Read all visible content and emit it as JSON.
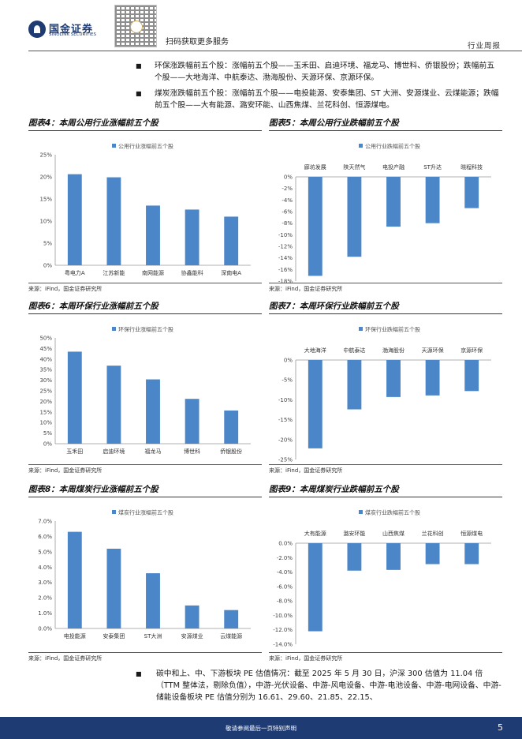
{
  "header": {
    "brand_cn": "国金证券",
    "brand_en": "SINOLINK SECURITIES",
    "qr_caption": "扫码获取更多服务",
    "section": "行业周报"
  },
  "bullets": [
    "环保涨跌幅前五个股：涨幅前五个股——玉禾田、启迪环境、福龙马、博世科、侨银股份；跌幅前五个股——大地海洋、中航泰达、渤海股份、天源环保、京源环保。",
    "煤炭涨跌幅前五个股：涨幅前五个股——电投能源、安泰集团、ST 大洲、安源煤业、云煤能源；跌幅前五个股——大有能源、潞安环能、山西焦煤、兰花科创、恒源煤电。"
  ],
  "figures": [
    {
      "title": "图表4：本周公用行业涨幅前五个股",
      "source": "来源：iFind，国金证券研究所"
    },
    {
      "title": "图表5：本周公用行业跌幅前五个股",
      "source": "来源：iFind，国金证券研究所"
    },
    {
      "title": "图表6：本周环保行业涨幅前五个股",
      "source": "来源：iFind，国金证券研究所"
    },
    {
      "title": "图表7：本周环保行业跌幅前五个股",
      "source": "来源：iFind，国金证券研究所"
    },
    {
      "title": "图表8：本周煤炭行业涨幅前五个股",
      "source": "来源：iFind，国金证券研究所"
    },
    {
      "title": "图表9：本周煤炭行业跌幅前五个股",
      "source": "来源：iFind，国金证券研究所"
    }
  ],
  "chart_data": [
    {
      "type": "bar",
      "title": "图表4：本周公用行业涨幅前五个股",
      "categories": [
        "粤电力A",
        "江苏新能",
        "南网能源",
        "协鑫能科",
        "深南电A"
      ],
      "series": [
        {
          "name": "公用行业涨幅前五个股",
          "values": [
            20.6,
            19.9,
            13.5,
            12.6,
            11.0
          ]
        }
      ],
      "yticks": [
        "0%",
        "5%",
        "10%",
        "15%",
        "20%",
        "25%"
      ],
      "ylim": [
        0,
        25
      ],
      "legend": "top",
      "color": "#4a86c8"
    },
    {
      "type": "bar",
      "title": "图表5：本周公用行业跌幅前五个股",
      "categories": [
        "廊坊发展",
        "陕天然气",
        "电投产融",
        "ST升达",
        "晓程科技"
      ],
      "series": [
        {
          "name": "公用行业跌幅前五个股",
          "values": [
            -17.1,
            -13.8,
            -8.6,
            -8.0,
            -5.4
          ]
        }
      ],
      "yticks": [
        "0%",
        "-2%",
        "-4%",
        "-6%",
        "-8%",
        "-10%",
        "-12%",
        "-14%",
        "-16%",
        "-18%"
      ],
      "ylim": [
        -18,
        0
      ],
      "legend": "top",
      "color": "#4a86c8"
    },
    {
      "type": "bar",
      "title": "图表6：本周环保行业涨幅前五个股",
      "categories": [
        "玉禾田",
        "启迪环境",
        "福龙马",
        "博世科",
        "侨银股份"
      ],
      "series": [
        {
          "name": "环保行业涨幅前五个股",
          "values": [
            43.5,
            36.9,
            30.4,
            21.2,
            15.7
          ]
        }
      ],
      "yticks": [
        "0%",
        "5%",
        "10%",
        "15%",
        "20%",
        "25%",
        "30%",
        "35%",
        "40%",
        "45%",
        "50%"
      ],
      "ylim": [
        0,
        50
      ],
      "legend": "top",
      "color": "#4a86c8"
    },
    {
      "type": "bar",
      "title": "图表7：本周环保行业跌幅前五个股",
      "categories": [
        "大地海洋",
        "中航泰达",
        "渤海股份",
        "天源环保",
        "京源环保"
      ],
      "series": [
        {
          "name": "环保行业跌幅前五个股",
          "values": [
            -22.2,
            -12.4,
            -9.3,
            -8.9,
            -7.8
          ]
        }
      ],
      "yticks": [
        "0%",
        "-5%",
        "-10%",
        "-15%",
        "-20%",
        "-25%"
      ],
      "ylim": [
        -25,
        0
      ],
      "legend": "top",
      "color": "#4a86c8"
    },
    {
      "type": "bar",
      "title": "图表8：本周煤炭行业涨幅前五个股",
      "categories": [
        "电投能源",
        "安泰集团",
        "ST大洲",
        "安源煤业",
        "云煤能源"
      ],
      "series": [
        {
          "name": "煤炭行业涨幅前五个股",
          "values": [
            6.3,
            5.2,
            3.6,
            1.5,
            1.2
          ]
        }
      ],
      "yticks": [
        "0.0%",
        "1.0%",
        "2.0%",
        "3.0%",
        "4.0%",
        "5.0%",
        "6.0%",
        "7.0%"
      ],
      "ylim": [
        0,
        7
      ],
      "legend": "top",
      "color": "#4a86c8"
    },
    {
      "type": "bar",
      "title": "图表9：本周煤炭行业跌幅前五个股",
      "categories": [
        "大有能源",
        "潞安环能",
        "山西焦煤",
        "兰花科创",
        "恒源煤电"
      ],
      "series": [
        {
          "name": "煤炭行业跌幅前五个股",
          "values": [
            -12.2,
            -3.8,
            -3.7,
            -2.9,
            -2.9
          ]
        }
      ],
      "yticks": [
        "0.0%",
        "-2.0%",
        "-4.0%",
        "-6.0%",
        "-8.0%",
        "-10.0%",
        "-12.0%",
        "-14.0%"
      ],
      "ylim": [
        -14,
        0
      ],
      "legend": "top",
      "color": "#4a86c8"
    }
  ],
  "bottom_bullet": "碳中和上、中、下游板块 PE 估值情况：截至 2025 年 5 月 30 日，沪深 300 估值为 11.04 倍（TTM 整体法，剔除负值），中游-光伏设备、中游-风电设备、中游-电池设备、中游-电网设备、中游-储能设备板块 PE 估值分别为 16.61、29.60、21.85、22.15、",
  "footer": {
    "disclaimer": "敬请参阅最后一页特别声明",
    "page_number": "5"
  }
}
